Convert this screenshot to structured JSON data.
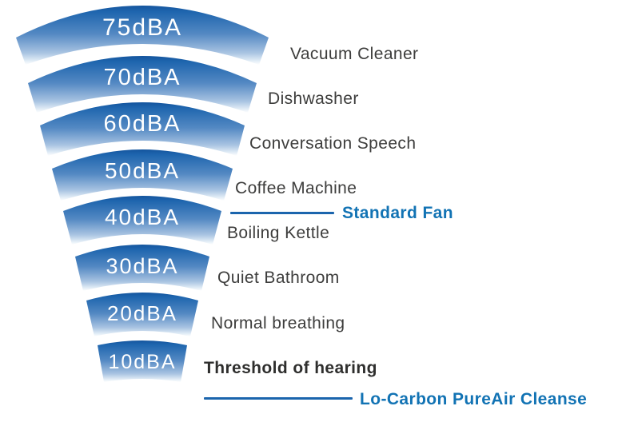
{
  "chart_data": {
    "type": "bar",
    "variant": "funnel-fan-of-arc-bands",
    "title": "",
    "unit": "dBA",
    "ylim": [
      10,
      75
    ],
    "legend_position": "right",
    "levels": [
      {
        "label": "75dBA",
        "value": 75,
        "comparison": "Vacuum Cleaner"
      },
      {
        "label": "70dBA",
        "value": 70,
        "comparison": "Dishwasher"
      },
      {
        "label": "60dBA",
        "value": 60,
        "comparison": "Conversation Speech"
      },
      {
        "label": "50dBA",
        "value": 50,
        "comparison": "Coffee Machine"
      },
      {
        "label": "40dBA",
        "value": 40,
        "comparison": "Boiling Kettle",
        "callout": "Standard Fan"
      },
      {
        "label": "30dBA",
        "value": 30,
        "comparison": "Quiet Bathroom"
      },
      {
        "label": "20dBA",
        "value": 20,
        "comparison": "Normal breathing"
      },
      {
        "label": "10dBA",
        "value": 10,
        "comparison": "Threshold of hearing"
      }
    ],
    "product_callout": "Lo-Carbon PureAir Cleanse"
  },
  "annotations": {
    "items": [
      {
        "label": "Vacuum Cleaner",
        "style": "normal"
      },
      {
        "label": "Dishwasher",
        "style": "normal"
      },
      {
        "label": "Conversation Speech",
        "style": "normal"
      },
      {
        "label": "Coffee Machine",
        "style": "normal"
      },
      {
        "label": "Standard Fan",
        "style": "callout-blue"
      },
      {
        "label": "Boiling Kettle",
        "style": "normal"
      },
      {
        "label": "Quiet Bathroom",
        "style": "normal"
      },
      {
        "label": "Normal breathing",
        "style": "normal"
      },
      {
        "label": "Threshold of hearing",
        "style": "bold"
      },
      {
        "label": "Lo-Carbon PureAir Cleanse",
        "style": "callout-blue"
      }
    ]
  },
  "colors": {
    "band_top_blue": "#1b60aa",
    "band_mid_blue": "#5489c3",
    "band_fade": "#ffffff",
    "band_label_text": "#ffffff",
    "note_text": "#3d3d3c",
    "bold_note_text": "#2e2e2d",
    "callout_blue": "#1273b4",
    "callout_line_blue": "#1b65ad"
  }
}
